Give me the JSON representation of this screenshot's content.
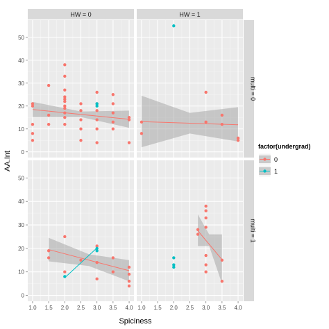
{
  "chart_data": {
    "type": "scatter",
    "xlabel": "Spiciness",
    "ylabel": "AA.Int",
    "xlim": [
      1.0,
      4.0
    ],
    "ylim": [
      0,
      55
    ],
    "x_ticks": [
      "1.0",
      "1.5",
      "2.0",
      "2.5",
      "3.0",
      "3.5",
      "4.0"
    ],
    "y_ticks": [
      "0",
      "10",
      "20",
      "30",
      "40",
      "50"
    ],
    "facet_cols": [
      "HW = 0",
      "HW = 1"
    ],
    "facet_rows": [
      "multi = 0",
      "multi = 1"
    ],
    "legend": {
      "title": "factor(undergrad)",
      "position": "right",
      "entries": [
        {
          "label": "0",
          "color": "#F8766D"
        },
        {
          "label": "1",
          "color": "#00BFC4"
        }
      ]
    },
    "grid": true,
    "smooth": "lm with confidence band",
    "panels": [
      {
        "col": "HW = 0",
        "row": "multi = 0",
        "series": [
          {
            "name": "0",
            "points": [
              [
                1.0,
                21
              ],
              [
                1.0,
                20
              ],
              [
                1.0,
                12
              ],
              [
                1.0,
                8
              ],
              [
                1.0,
                5
              ],
              [
                1.5,
                29
              ],
              [
                1.5,
                16
              ],
              [
                1.5,
                12
              ],
              [
                2.0,
                38
              ],
              [
                2.0,
                33
              ],
              [
                2.0,
                27
              ],
              [
                2.0,
                24
              ],
              [
                2.0,
                23
              ],
              [
                2.0,
                22
              ],
              [
                2.0,
                20
              ],
              [
                2.0,
                19
              ],
              [
                2.0,
                17
              ],
              [
                2.0,
                15
              ],
              [
                2.0,
                12
              ],
              [
                2.5,
                21
              ],
              [
                2.5,
                18
              ],
              [
                2.5,
                14
              ],
              [
                2.5,
                10
              ],
              [
                2.5,
                5
              ],
              [
                3.0,
                26
              ],
              [
                3.0,
                21
              ],
              [
                3.0,
                18
              ],
              [
                3.0,
                14
              ],
              [
                3.0,
                10
              ],
              [
                3.0,
                4
              ],
              [
                3.5,
                25
              ],
              [
                3.5,
                21
              ],
              [
                3.5,
                17
              ],
              [
                3.5,
                13
              ],
              [
                3.5,
                10
              ],
              [
                4.0,
                15
              ],
              [
                4.0,
                14
              ],
              [
                4.0,
                4
              ]
            ],
            "fit": [
              [
                1.0,
                18.5
              ],
              [
                4.0,
                14.2
              ]
            ],
            "band": [
              [
                1.0,
                15.2,
                21.8
              ],
              [
                2.5,
                15.2,
                17.6
              ],
              [
                4.0,
                10.5,
                18.0
              ]
            ]
          },
          {
            "name": "1",
            "points": [
              [
                3.0,
                21
              ],
              [
                3.0,
                20
              ]
            ]
          }
        ]
      },
      {
        "col": "HW = 1",
        "row": "multi = 0",
        "series": [
          {
            "name": "0",
            "points": [
              [
                1.0,
                13
              ],
              [
                1.0,
                8
              ],
              [
                3.0,
                26
              ],
              [
                3.0,
                13
              ],
              [
                3.5,
                16
              ],
              [
                3.5,
                12
              ],
              [
                4.0,
                6
              ],
              [
                4.0,
                5
              ]
            ],
            "fit": [
              [
                1.0,
                13.2
              ],
              [
                4.0,
                11.8
              ]
            ],
            "band": [
              [
                1.0,
                2.0,
                24.5
              ],
              [
                2.5,
                8.0,
                17.0
              ],
              [
                4.0,
                4.5,
                19.5
              ]
            ]
          },
          {
            "name": "1",
            "points": [
              [
                2.0,
                55
              ]
            ]
          }
        ]
      },
      {
        "col": "HW = 0",
        "row": "multi = 1",
        "series": [
          {
            "name": "0",
            "points": [
              [
                1.5,
                19
              ],
              [
                1.5,
                16
              ],
              [
                2.0,
                25
              ],
              [
                2.0,
                10
              ],
              [
                2.5,
                15
              ],
              [
                3.0,
                21
              ],
              [
                3.0,
                14
              ],
              [
                3.0,
                7
              ],
              [
                3.5,
                16
              ],
              [
                3.5,
                10
              ],
              [
                4.0,
                12
              ],
              [
                4.0,
                9
              ],
              [
                4.0,
                6
              ],
              [
                4.0,
                4
              ]
            ],
            "fit": [
              [
                1.5,
                19.5
              ],
              [
                4.0,
                10.5
              ]
            ],
            "band": [
              [
                1.5,
                14.5,
                24.5
              ],
              [
                2.75,
                12.5,
                17.5
              ],
              [
                4.0,
                6.0,
                15.0
              ]
            ]
          },
          {
            "name": "1",
            "points": [
              [
                2.0,
                8
              ],
              [
                3.0,
                20
              ],
              [
                3.0,
                19
              ]
            ],
            "fit": [
              [
                2.0,
                7.5
              ],
              [
                3.0,
                20.2
              ]
            ]
          }
        ]
      },
      {
        "col": "HW = 1",
        "row": "multi = 1",
        "series": [
          {
            "name": "0",
            "points": [
              [
                2.75,
                28
              ],
              [
                2.75,
                26
              ],
              [
                3.0,
                38
              ],
              [
                3.0,
                36
              ],
              [
                3.0,
                33
              ],
              [
                3.0,
                29
              ],
              [
                3.0,
                17
              ],
              [
                3.0,
                13
              ],
              [
                3.0,
                10
              ],
              [
                3.5,
                15
              ],
              [
                3.5,
                6
              ]
            ],
            "fit": [
              [
                2.75,
                27.5
              ],
              [
                3.5,
                15.2
              ]
            ],
            "band": [
              [
                2.75,
                21.0,
                34.5
              ],
              [
                3.1,
                21.0,
                26.0
              ],
              [
                3.5,
                5.0,
                26.0
              ]
            ]
          },
          {
            "name": "1",
            "points": [
              [
                2.0,
                16
              ],
              [
                2.0,
                13
              ],
              [
                2.0,
                12
              ]
            ]
          }
        ]
      }
    ]
  }
}
